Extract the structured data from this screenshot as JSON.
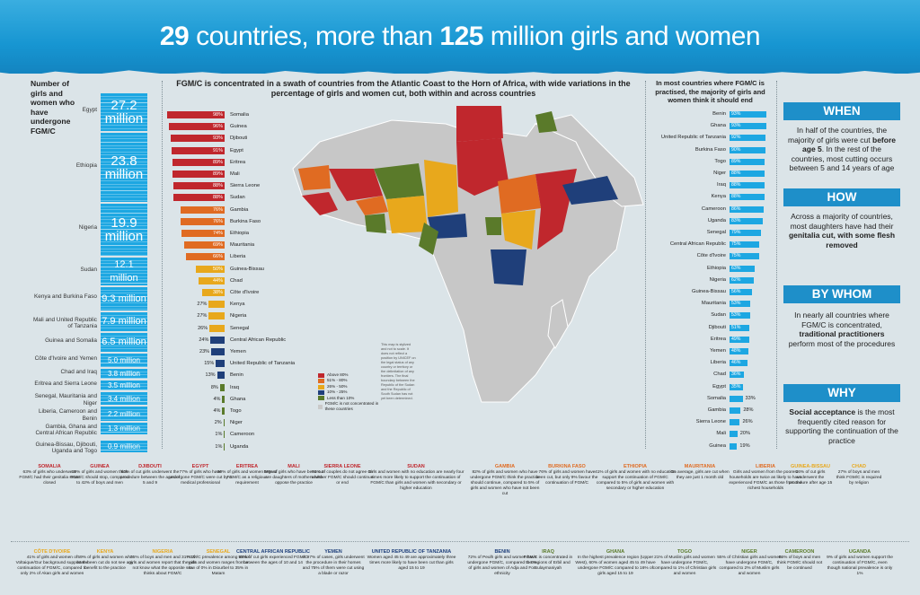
{
  "title": {
    "part1": "29",
    "part2": " countries, more than ",
    "part3": "125",
    "part4": " million girls and women"
  },
  "left_header": "Number of girls and women who have undergone FGM/C",
  "left_items": [
    {
      "label": "Egypt",
      "value": "27.2 million",
      "top": 104,
      "h": 42
    },
    {
      "label": "Ethiopia",
      "value": "23.8 million",
      "top": 148,
      "h": 77
    },
    {
      "label": "Nigeria",
      "value": "19.9 million",
      "top": 227,
      "h": 58
    },
    {
      "label": "Sudan",
      "value": "12.1 million",
      "top": 287,
      "h": 31
    },
    {
      "label": "Kenya and Burkina Faso",
      "value": "9.3 million",
      "top": 320,
      "h": 26
    },
    {
      "label": "Mali and United Republic of Tanzania",
      "value": "7.9 million",
      "top": 348,
      "h": 21
    },
    {
      "label": "Guinea and Somalia",
      "value": "6.5 million",
      "top": 371,
      "h": 21
    },
    {
      "label": "Côte d'Ivoire and Yemen",
      "value": "5.0 million",
      "top": 394,
      "h": 15
    },
    {
      "label": "Chad and Iraq",
      "value": "3.8 million",
      "top": 411,
      "h": 11
    },
    {
      "label": "Eritrea and Sierra Leone",
      "value": "3.5 million",
      "top": 424,
      "h": 11
    },
    {
      "label": "Senegal, Mauritania and Niger",
      "value": "3.4 million",
      "top": 437,
      "h": 14
    },
    {
      "label": "Liberia, Cameroon and Benin",
      "value": "2.2 million",
      "top": 453,
      "h": 16
    },
    {
      "label": "Gambia, Ghana and Central African Republic",
      "value": "1.3 million",
      "top": 471,
      "h": 13
    },
    {
      "label": "Guinea-Bissau, Djibouti, Uganda and Togo",
      "value": "0.9 million",
      "top": 491,
      "h": 13
    }
  ],
  "map_header": "FGM/C is concentrated in a swath of countries from the Atlantic Coast to the Horn of Africa, with wide variations in the percentage of girls and women cut, both within and across countries",
  "chart_data": [
    {
      "type": "bar",
      "title": "",
      "colors": {
        "above80": "#c0272d",
        "51to80": "#e06b22",
        "26to50": "#e8a81c",
        "10to25": "#1f3f7a",
        "lessthan10": "#5a7a2a"
      },
      "categories": [
        "Somalia",
        "Guinea",
        "Djibouti",
        "Egypt",
        "Eritrea",
        "Mali",
        "Sierra Leone",
        "Sudan",
        "Gambia",
        "Burkina Faso",
        "Ethiopia",
        "Mauritania",
        "Liberia",
        "Guinea-Bissau",
        "Chad",
        "Côte d'Ivoire",
        "Kenya",
        "Nigeria",
        "Senegal",
        "Central African Republic",
        "Yemen",
        "United Republic of Tanzania",
        "Benin",
        "Iraq",
        "Ghana",
        "Togo",
        "Niger",
        "Cameroon",
        "Uganda"
      ],
      "values": [
        98,
        96,
        93,
        91,
        89,
        89,
        88,
        88,
        76,
        76,
        74,
        69,
        66,
        50,
        44,
        38,
        27,
        27,
        26,
        24,
        23,
        15,
        13,
        8,
        4,
        4,
        2,
        1,
        1
      ],
      "labels": [
        "98%",
        "96%",
        "93%",
        "91%",
        "89%",
        "89%",
        "88%",
        "88%",
        "76%",
        "76%",
        "74%",
        "69%",
        "66%",
        "50%",
        "44%",
        "38%",
        "27%",
        "27%",
        "26%",
        "24%",
        "23%",
        "15%",
        "13%",
        "8%",
        "4%",
        "4%",
        "2%",
        "1%",
        "1%"
      ]
    },
    {
      "type": "bar",
      "title": "In most countries where FGM/C is practised, the majority of girls and women think it should end",
      "categories": [
        "Benin",
        "Ghana",
        "United Republic of Tanzania",
        "Burkina Faso",
        "Togo",
        "Niger",
        "Iraq",
        "Kenya",
        "Cameroon",
        "Uganda",
        "Senegal",
        "Central African Republic",
        "Côte d'Ivoire",
        "Ethiopia",
        "Nigeria",
        "Guinea-Bissau",
        "Mauritania",
        "Sudan",
        "Djibouti",
        "Eritrea",
        "Yemen",
        "Liberia",
        "Chad",
        "Egypt",
        "Somalia",
        "Gambia",
        "Sierra Leone",
        "Mali",
        "Guinea"
      ],
      "values": [
        93,
        93,
        92,
        90,
        89,
        88,
        88,
        88,
        86,
        83,
        79,
        75,
        75,
        63,
        62,
        56,
        53,
        53,
        51,
        49,
        48,
        46,
        36,
        35,
        33,
        28,
        26,
        20,
        19
      ],
      "labels": [
        "93%",
        "93%",
        "92%",
        "90%",
        "89%",
        "88%",
        "88%",
        "88%",
        "86%",
        "83%",
        "79%",
        "75%",
        "75%",
        "63%",
        "62%",
        "56%",
        "53%",
        "53%",
        "51%",
        "49%",
        "48%",
        "46%",
        "36%",
        "35%",
        "33%",
        "28%",
        "26%",
        "20%",
        "19%"
      ]
    }
  ],
  "legend": [
    {
      "label": "Above 80%",
      "color": "#c0272d"
    },
    {
      "label": "51% - 80%",
      "color": "#e06b22"
    },
    {
      "label": "26% - 50%",
      "color": "#e8a81c"
    },
    {
      "label": "10% - 25%",
      "color": "#1f3f7a"
    },
    {
      "label": "Less than 10%",
      "color": "#5a7a2a"
    },
    {
      "label": "FGM/C is not concentrated in these countries",
      "color": "#c9c9c9"
    }
  ],
  "map_note": "This map is stylized and not to scale. It does not reflect a position by UNICEF on the legal status of any country or territory or the delimitation of any frontiers. The final boundary between the Republic of the Sudan and the Republic of South Sudan has not yet been determined.",
  "right_header": "In most countries where FGM/C is practised, the majority of girls and women think it should end",
  "panel": {
    "when_h": "WHEN",
    "when_t1": "In half of the countries, the majority of girls were cut ",
    "when_b": "before age 5",
    "when_t2": ". In the rest of the countries, most cutting occurs between 5 and 14 years of age",
    "how_h": "HOW",
    "how_t1": "Across a majority of countries, most daughters have had their ",
    "how_b": "genitalia cut, with some flesh removed",
    "bywhom_h": "BY WHOM",
    "bywhom_t1": "In nearly all countries where FGM/C is concentrated, ",
    "bywhom_b": "traditional practitioners",
    "bywhom_t2": " perform most of the procedures",
    "why_h": "WHY",
    "why_b": "Social acceptance",
    "why_t": " is the most frequently cited reason for supporting the continuation of the practice"
  },
  "notes_row1": [
    {
      "h": "SOMALIA",
      "t": "63% of girls who underwent FGM/C had their genitalia sewn closed",
      "x": 20,
      "c": "#c0272d"
    },
    {
      "h": "GUINEA",
      "t": "19% of girls and women think FGM/C should stop, compared to 42% of boys and men",
      "x": 76,
      "c": "#c0272d"
    },
    {
      "h": "DJIBOUTI",
      "t": "62% of cut girls underwent the procedure between the ages of 5 and 9",
      "x": 132,
      "c": "#c0272d"
    },
    {
      "h": "EGYPT",
      "t": "77% of girls who have undergone FGM/C were cut by a medical professional",
      "x": 188,
      "c": "#c0272d"
    },
    {
      "h": "ERITREA",
      "t": "60% of girls and women regard FGM/C as a religious requirement",
      "x": 240,
      "c": "#c0272d"
    },
    {
      "h": "MALI",
      "t": "58% of girls who have been cut are daughters of mothers who oppose the practice",
      "x": 292,
      "c": "#c0272d"
    },
    {
      "h": "SIERRA LEONE",
      "t": "51% of couples do not agree on whether FGM/C should continue or end",
      "x": 346,
      "c": "#c0272d"
    },
    {
      "h": "SUDAN",
      "t": "Girls and women with no education are nearly four times more likely to support the continuation of FGM/C than girls and women with secondary or higher education",
      "x": 408,
      "c": "#c0272d",
      "w": 110
    },
    {
      "h": "GAMBIA",
      "t": "82% of girls and women who have undergone FGM/C think the practice should continue, compared to 5% of girls and women who have not been cut",
      "x": 520,
      "c": "#e06b22",
      "w": 84
    },
    {
      "h": "BURKINA FASO",
      "t": "76% of girls and women have been cut, but only 9% favour the continuation of FGM/C",
      "x": 596,
      "c": "#e06b22"
    },
    {
      "h": "ETHIOPIA",
      "t": "41% of girls and women with no education support the continuation of FGM/C compared to 5% of girls and women with secondary or higher education",
      "x": 662,
      "c": "#e06b22",
      "w": 90
    },
    {
      "h": "MAURITANIA",
      "t": "On average, girls are cut when they are just 1 month old",
      "x": 744,
      "c": "#e06b22"
    },
    {
      "h": "LIBERIA",
      "t": "Girls and women from the poorest households are twice as likely to have experienced FGM/C as those from the richest households",
      "x": 810,
      "c": "#e06b22",
      "w": 84
    },
    {
      "h": "GUINEA-BISSAU",
      "t": "16% of cut girls underwent the procedure after age 15",
      "x": 876,
      "c": "#e8a81c",
      "w": 52
    },
    {
      "h": "CHAD",
      "t": "27% of boys and men think FGM/C is required by religion",
      "x": 930,
      "c": "#e8a81c",
      "w": 52
    }
  ],
  "notes_row2": [
    {
      "h": "CÔTE D'IVOIRE",
      "t": "41% of girls and women of Voltaique/Gur background support the continuation of FGM/C, compared to only 2% of Akan girls and women",
      "x": 16,
      "c": "#e8a81c",
      "w": 84
    },
    {
      "h": "KENYA",
      "t": "59% of girls and women who have been cut do not see any benefit to the practice",
      "x": 82,
      "c": "#e8a81c"
    },
    {
      "h": "NIGERIA",
      "t": "35% of boys and men and 31% of girls and women report that they do not know what the opposite sex thinks about FGM/C",
      "x": 142,
      "c": "#e8a81c",
      "w": 78
    },
    {
      "h": "SENEGAL",
      "t": "FGM/C prevalence among Wolof girls and women ranges from a low of 0% in Diourbel to 35% in Matam",
      "x": 208,
      "c": "#e8a81c"
    },
    {
      "h": "CENTRAL AFRICAN REPUBLIC",
      "t": "52% of cut girls experienced FGM/C between the ages of 10 and 14",
      "x": 262,
      "c": "#1f3f7a",
      "w": 84
    },
    {
      "h": "YEMEN",
      "t": "In 97% of cases, girls underwent the procedure in their homes and 75% of them were cut using a blade or razor",
      "x": 336,
      "c": "#1f3f7a"
    },
    {
      "h": "UNITED REPUBLIC OF TANZANIA",
      "t": "Women aged 45 to 49 are approximately three times more likely to have been cut than girls aged 15 to 19",
      "x": 408,
      "c": "#1f3f7a",
      "w": 100
    },
    {
      "h": "BENIN",
      "t": "72% of Peulh girls and women have undergone FGM/C, compared to 0% of girls and women of Adja and Fon ethnicity",
      "x": 520,
      "c": "#1f3f7a",
      "w": 78
    },
    {
      "h": "IRAQ",
      "t": "FGM/C is concentrated in the regions of Erbil and Sulaymaniyah",
      "x": 582,
      "c": "#5a7a2a",
      "w": 56
    },
    {
      "h": "GHANA",
      "t": "In the highest prevalence region (Upper West), 60% of women aged 45 to 49 have undergone FGM/C compared to 16% of girls aged 15 to 19",
      "x": 640,
      "c": "#5a7a2a",
      "w": 90
    },
    {
      "h": "TOGO",
      "t": "21% of Muslim girls and women have undergone FGM/C, compared to 1% of Christian girls and women",
      "x": 726,
      "c": "#5a7a2a",
      "w": 72
    },
    {
      "h": "NIGER",
      "t": "55% of Christian girls and women have undergone FGM/C, compared to 2% of Muslim girls and women",
      "x": 798,
      "c": "#5a7a2a",
      "w": 72
    },
    {
      "h": "CAMEROON",
      "t": "85% of boys and men think FGM/C should not be continued",
      "x": 862,
      "c": "#5a7a2a",
      "w": 56
    },
    {
      "h": "UGANDA",
      "t": "9% of girls and women support the continuation of FGM/C, even though national prevalence is only 1%",
      "x": 920,
      "c": "#5a7a2a",
      "w": 74
    }
  ]
}
